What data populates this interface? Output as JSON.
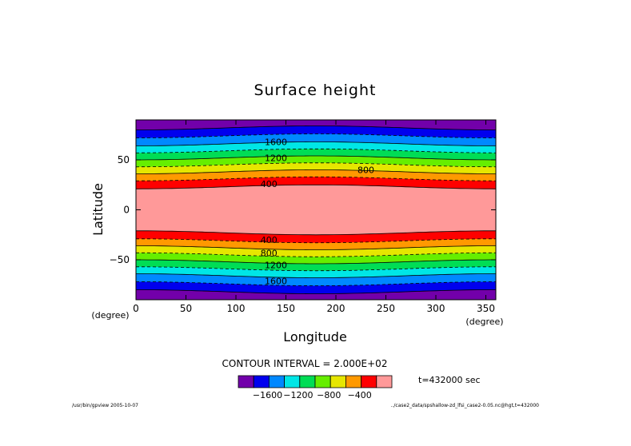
{
  "chart_data": {
    "type": "contour",
    "title": "Surface height",
    "xlabel": "Longitude",
    "ylabel": "Latitude",
    "x_unit": "(degree)",
    "y_unit": "(degree)",
    "xlim": [
      0,
      360
    ],
    "ylim": [
      -90,
      90
    ],
    "xticks": [
      "0",
      "50",
      "100",
      "150",
      "200",
      "250",
      "300",
      "350"
    ],
    "yticks": [
      "50",
      "0",
      "−50"
    ],
    "contour_interval_text": "CONTOUR INTERVAL = 2.000E+02",
    "time_text": "t=432000 sec",
    "colorbar_labels": [
      "−1600",
      "−1200",
      "−800",
      "−400"
    ],
    "colorbar_colors": [
      "#7200aa",
      "#0000ee",
      "#0088ff",
      "#00e6e6",
      "#00dd55",
      "#66ee00",
      "#e6e600",
      "#ff9900",
      "#ff0000",
      "#ff9999"
    ],
    "contour_labels": [
      {
        "text": "1600",
        "lon": 140,
        "lat": 68
      },
      {
        "text": "1200",
        "lon": 140,
        "lat": 52
      },
      {
        "text": "800",
        "lon": 230,
        "lat": 40
      },
      {
        "text": "400",
        "lon": 133,
        "lat": 26
      },
      {
        "text": "400",
        "lon": 133,
        "lat": -30
      },
      {
        "text": "800",
        "lon": 133,
        "lat": -43
      },
      {
        "text": "1200",
        "lon": 140,
        "lat": -55
      },
      {
        "text": "1600",
        "lon": 140,
        "lat": -71
      }
    ],
    "footer_left": "/usr/bin/gpview  2005-10-07",
    "footer_right": "../case2_data/spshallow-zd_lfsi_case2-0.05.nc@hgt,t=432000"
  }
}
